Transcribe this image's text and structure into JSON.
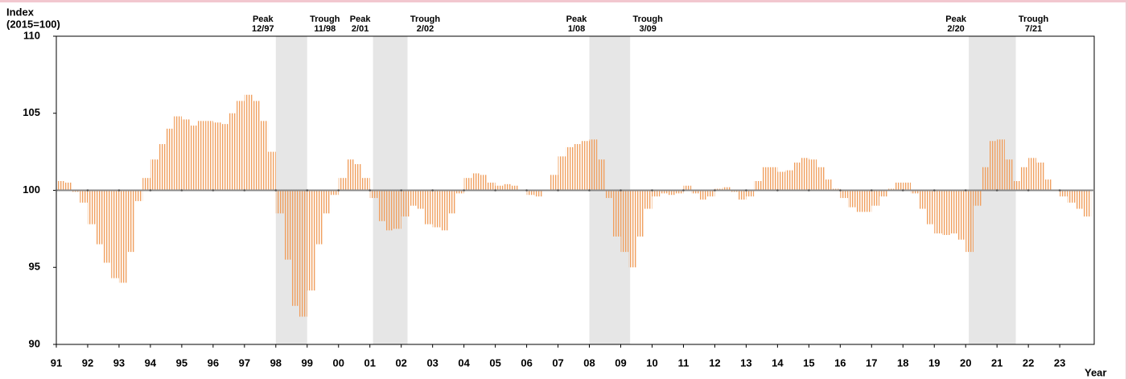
{
  "chart_data": {
    "type": "bar",
    "ylabel": [
      "Index",
      "(2015=100)"
    ],
    "xlabel": "Year",
    "baseline": 100,
    "color": "#f0a060",
    "shade_color": "#e6e6e6",
    "xlim": [
      1991,
      2024.1
    ],
    "ylim": [
      90,
      110
    ],
    "yticks": [
      90,
      95,
      100,
      105,
      110
    ],
    "xticks": [
      {
        "value": 1991,
        "label": "91"
      },
      {
        "value": 1992,
        "label": "92"
      },
      {
        "value": 1993,
        "label": "93"
      },
      {
        "value": 1994,
        "label": "94"
      },
      {
        "value": 1995,
        "label": "95"
      },
      {
        "value": 1996,
        "label": "96"
      },
      {
        "value": 1997,
        "label": "97"
      },
      {
        "value": 1998,
        "label": "98"
      },
      {
        "value": 1999,
        "label": "99"
      },
      {
        "value": 2000,
        "label": "00"
      },
      {
        "value": 2001,
        "label": "01"
      },
      {
        "value": 2002,
        "label": "02"
      },
      {
        "value": 2003,
        "label": "03"
      },
      {
        "value": 2004,
        "label": "04"
      },
      {
        "value": 2005,
        "label": "05"
      },
      {
        "value": 2006,
        "label": "06"
      },
      {
        "value": 2007,
        "label": "07"
      },
      {
        "value": 2008,
        "label": "08"
      },
      {
        "value": 2009,
        "label": "09"
      },
      {
        "value": 2010,
        "label": "10"
      },
      {
        "value": 2011,
        "label": "11"
      },
      {
        "value": 2012,
        "label": "12"
      },
      {
        "value": 2013,
        "label": "13"
      },
      {
        "value": 2014,
        "label": "14"
      },
      {
        "value": 2015,
        "label": "15"
      },
      {
        "value": 2016,
        "label": "16"
      },
      {
        "value": 2017,
        "label": "17"
      },
      {
        "value": 2018,
        "label": "18"
      },
      {
        "value": 2019,
        "label": "19"
      },
      {
        "value": 2020,
        "label": "20"
      },
      {
        "value": 2021,
        "label": "21"
      },
      {
        "value": 2022,
        "label": "22"
      },
      {
        "value": 2023,
        "label": "23"
      }
    ],
    "recessions": [
      {
        "start": 1998.0,
        "end": 1999.0,
        "peak": "Peak",
        "peak_date": "12/97",
        "trough": "Trough",
        "trough_date": "11/98"
      },
      {
        "start": 2001.1,
        "end": 2002.2,
        "peak": "Peak",
        "peak_date": "2/01",
        "trough": "Trough",
        "trough_date": "2/02"
      },
      {
        "start": 2008.0,
        "end": 2009.3,
        "peak": "Peak",
        "peak_date": "1/08",
        "trough": "Trough",
        "trough_date": "3/09"
      },
      {
        "start": 2020.1,
        "end": 2021.6,
        "peak": "Peak",
        "peak_date": "2/20",
        "trough": "Trough",
        "trough_date": "7/21"
      }
    ],
    "x": [
      1991,
      1991.25,
      1991.5,
      1991.75,
      1992,
      1992.25,
      1992.5,
      1992.75,
      1993,
      1993.25,
      1993.5,
      1993.75,
      1994,
      1994.25,
      1994.5,
      1994.75,
      1995,
      1995.25,
      1995.5,
      1995.75,
      1996,
      1996.25,
      1996.5,
      1996.75,
      1997,
      1997.25,
      1997.5,
      1997.75,
      1998,
      1998.25,
      1998.5,
      1998.75,
      1999,
      1999.25,
      1999.5,
      1999.75,
      2000,
      2000.25,
      2000.5,
      2000.75,
      2001,
      2001.25,
      2001.5,
      2001.75,
      2002,
      2002.25,
      2002.5,
      2002.75,
      2003,
      2003.25,
      2003.5,
      2003.75,
      2004,
      2004.25,
      2004.5,
      2004.75,
      2005,
      2005.25,
      2005.5,
      2005.75,
      2006,
      2006.25,
      2006.5,
      2006.75,
      2007,
      2007.25,
      2007.5,
      2007.75,
      2008,
      2008.25,
      2008.5,
      2008.75,
      2009,
      2009.25,
      2009.5,
      2009.75,
      2010,
      2010.25,
      2010.5,
      2010.75,
      2011,
      2011.25,
      2011.5,
      2011.75,
      2012,
      2012.25,
      2012.5,
      2012.75,
      2013,
      2013.25,
      2013.5,
      2013.75,
      2014,
      2014.25,
      2014.5,
      2014.75,
      2015,
      2015.25,
      2015.5,
      2015.75,
      2016,
      2016.25,
      2016.5,
      2016.75,
      2017,
      2017.25,
      2017.5,
      2017.75,
      2018,
      2018.25,
      2018.5,
      2018.75,
      2019,
      2019.25,
      2019.5,
      2019.75,
      2020,
      2020.25,
      2020.5,
      2020.75,
      2021,
      2021.25,
      2021.5,
      2021.75,
      2022,
      2022.25,
      2022.5,
      2022.75,
      2023,
      2023.25,
      2023.5,
      2023.75
    ],
    "values": [
      100.6,
      100.5,
      99.9,
      99.2,
      97.8,
      96.5,
      95.3,
      94.3,
      94.0,
      96.0,
      99.3,
      100.8,
      102,
      103,
      104,
      104.8,
      104.6,
      104.2,
      104.5,
      104.5,
      104.4,
      104.3,
      105,
      105.8,
      106.2,
      105.8,
      104.5,
      102.5,
      98.5,
      95.5,
      92.5,
      91.8,
      93.5,
      96.5,
      98.5,
      99.7,
      100.8,
      102,
      101.7,
      100.8,
      99.5,
      98,
      97.4,
      97.5,
      98.3,
      99,
      98.8,
      97.8,
      97.6,
      97.4,
      98.5,
      99.8,
      100.8,
      101.1,
      101,
      100.5,
      100.3,
      100.4,
      100.3,
      100,
      99.7,
      99.6,
      100,
      101,
      102.2,
      102.8,
      103,
      103.2,
      103.3,
      102,
      99.5,
      97,
      96,
      95,
      97,
      98.8,
      99.6,
      99.8,
      99.7,
      99.8,
      100.3,
      99.8,
      99.4,
      99.6,
      100.1,
      100.2,
      99.9,
      99.4,
      99.6,
      100.6,
      101.5,
      101.5,
      101.2,
      101.3,
      101.8,
      102.1,
      102,
      101.5,
      100.7,
      100.1,
      99.5,
      98.9,
      98.6,
      98.6,
      99,
      99.6,
      100.1,
      100.5,
      100.5,
      99.8,
      98.8,
      97.8,
      97.2,
      97.1,
      97.2,
      96.8,
      96,
      99,
      101.5,
      103.2,
      103.3,
      102,
      100.6,
      101.5,
      102.1,
      101.8,
      100.7,
      100,
      99.6,
      99.2,
      98.8,
      98.3
    ]
  }
}
